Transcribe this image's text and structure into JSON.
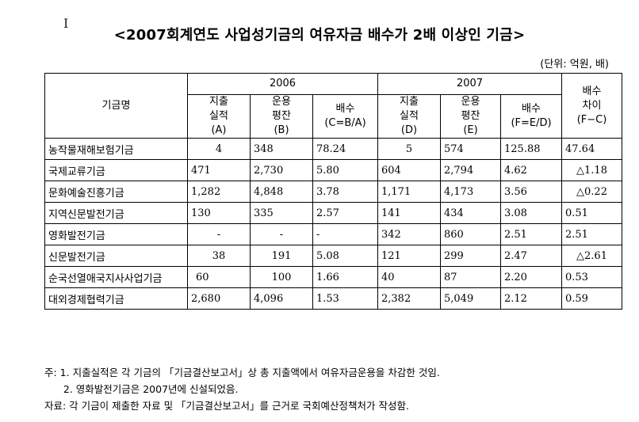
{
  "title": "<2007회계연도 사업성기금의 여유자금 배수가 2배 이상인 기금>",
  "unit": "(단위: 억원, 배)",
  "cursor": "I",
  "table": {
    "fund_header": "기금명",
    "year_2006": "2006",
    "year_2007": "2007",
    "diff_header": [
      "배수",
      "차이",
      "(F−C)"
    ],
    "sub_2006": [
      [
        "지출",
        "실적",
        "(A)"
      ],
      [
        "운용",
        "평잔",
        "(B)"
      ],
      [
        "배수",
        "(C=B/A)"
      ]
    ],
    "sub_2007": [
      [
        "지출",
        "실적",
        "(D)"
      ],
      [
        "운용",
        "평잔",
        "(E)"
      ],
      [
        "배수",
        "(F=E/D)"
      ]
    ],
    "rows": [
      {
        "name": "농작물재해보험기금",
        "a": "4",
        "b": "348",
        "c": "78.24",
        "d": "5",
        "e": "574",
        "f": "125.88",
        "diff": "47.64"
      },
      {
        "name": "국제교류기금",
        "a": "471",
        "b": "2,730",
        "c": "5.80",
        "d": "604",
        "e": "2,794",
        "f": "4.62",
        "diff": "△1.18"
      },
      {
        "name": "문화예술진흥기금",
        "a": "1,282",
        "b": "4,848",
        "c": "3.78",
        "d": "1,171",
        "e": "4,173",
        "f": "3.56",
        "diff": "△0.22"
      },
      {
        "name": "지역신문발전기금",
        "a": "130",
        "b": "335",
        "c": "2.57",
        "d": "141",
        "e": "434",
        "f": "3.08",
        "diff": "0.51"
      },
      {
        "name": "영화발전기금",
        "a": "-",
        "b": "-",
        "c": "-",
        "d": "342",
        "e": "860",
        "f": "2.51",
        "diff": "2.51"
      },
      {
        "name": "신문발전기금",
        "a": "38",
        "b": "191",
        "c": "5.08",
        "d": "121",
        "e": "299",
        "f": "2.47",
        "diff": "△2.61"
      },
      {
        "name": "순국선열애국지사사업기금",
        "a": "60",
        "b": "100",
        "c": "1.66",
        "d": "40",
        "e": "87",
        "f": "2.20",
        "diff": "0.53"
      },
      {
        "name": "대외경제협력기금",
        "a": "2,680",
        "b": "4,096",
        "c": "1.53",
        "d": "2,382",
        "e": "5,049",
        "f": "2.12",
        "diff": "0.59"
      }
    ]
  },
  "notes": [
    "주: 1. 지출실적은 각 기금의 「기금결산보고서」상 총 지출액에서 여유자금운용을 차감한 것임.",
    "      2. 영화발전기금은 2007년에 신설되었음.",
    "자료: 각 기금이 제출한 자료 및 「기금결산보고서」를 근거로 국회예산정책처가 작성함."
  ]
}
